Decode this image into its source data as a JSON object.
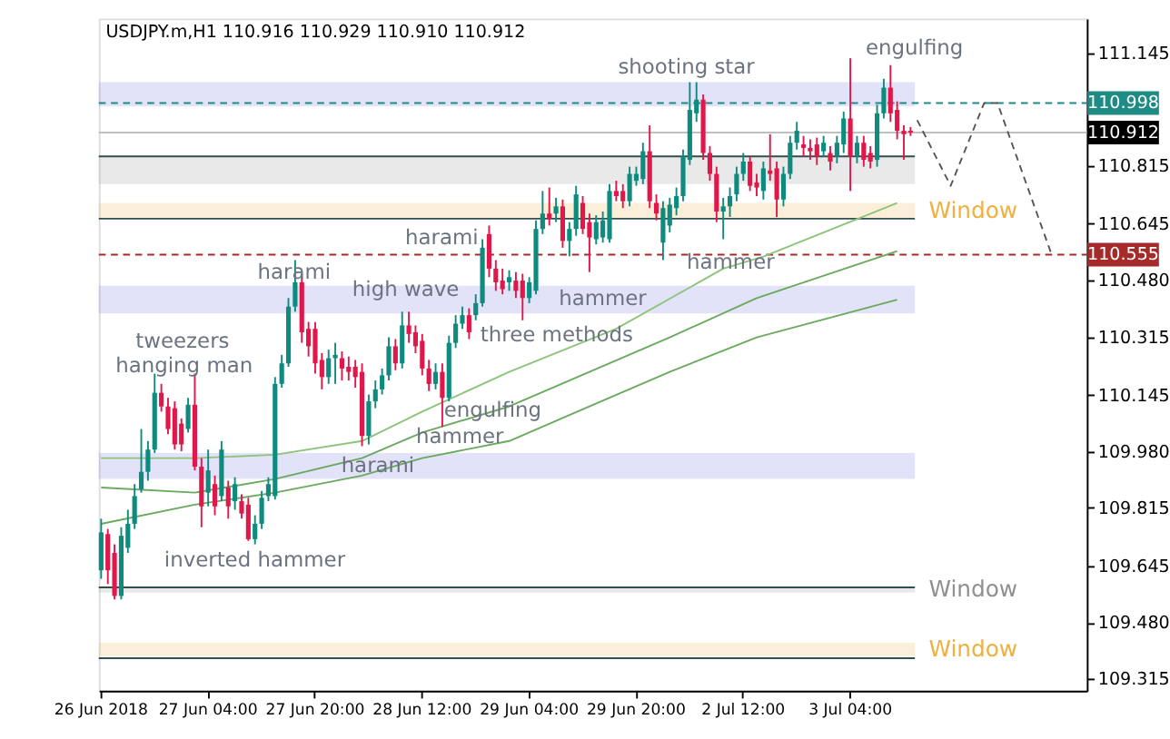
{
  "chart_data": {
    "type": "candlestick",
    "title": "USDJPY.m,H1  110.916 110.929 110.910 110.912",
    "categories": [
      "26 Jun 2018",
      null,
      null,
      null,
      null,
      null,
      null,
      null,
      null,
      null,
      null,
      null,
      null,
      null,
      null,
      null,
      "27 Jun 04:00",
      null,
      null,
      null,
      null,
      null,
      null,
      null,
      null,
      null,
      null,
      null,
      null,
      null,
      null,
      null,
      "27 Jun 20:00",
      null,
      null,
      null,
      null,
      null,
      null,
      null,
      null,
      null,
      null,
      null,
      null,
      null,
      null,
      null,
      "28 Jun 12:00",
      null,
      null,
      null,
      null,
      null,
      null,
      null,
      null,
      null,
      null,
      null,
      null,
      null,
      null,
      null,
      "29 Jun 04:00",
      null,
      null,
      null,
      null,
      null,
      null,
      null,
      null,
      null,
      null,
      null,
      null,
      null,
      null,
      null,
      "29 Jun 20:00",
      null,
      null,
      null,
      null,
      null,
      null,
      null,
      null,
      null,
      null,
      null,
      null,
      null,
      null,
      null,
      "2 Jul 12:00",
      null,
      null,
      null,
      null,
      null,
      null,
      null,
      null,
      null,
      null,
      null,
      null,
      null,
      null,
      null,
      "3 Jul 04:00",
      null,
      null,
      null,
      null,
      null,
      null,
      null,
      null,
      null,
      null,
      null,
      null,
      null,
      null,
      null,
      null,
      null,
      null,
      null,
      null,
      null,
      null,
      null,
      null,
      null,
      null,
      null,
      null,
      null,
      null,
      null,
      null,
      null,
      null,
      null
    ],
    "ohlc": [
      [
        109.632,
        109.783,
        109.607,
        109.743
      ],
      [
        109.738,
        109.753,
        109.592,
        109.632
      ],
      [
        109.683,
        109.708,
        109.547,
        109.557
      ],
      [
        109.557,
        109.758,
        109.547,
        109.733
      ],
      [
        109.698,
        109.809,
        109.683,
        109.768
      ],
      [
        109.768,
        109.884,
        109.753,
        109.849
      ],
      [
        109.869,
        110.045,
        109.859,
        109.92
      ],
      [
        109.92,
        110.01,
        109.894,
        109.985
      ],
      [
        109.985,
        110.207,
        109.975,
        110.151
      ],
      [
        110.151,
        110.177,
        110.096,
        110.111
      ],
      [
        110.111,
        110.136,
        110.03,
        110.045
      ],
      [
        110.106,
        110.126,
        109.985,
        110.0
      ],
      [
        110.061,
        110.076,
        109.98,
        110.0
      ],
      [
        110.045,
        110.136,
        110.035,
        110.116
      ],
      [
        110.116,
        110.207,
        109.924,
        109.935
      ],
      [
        109.935,
        109.96,
        109.758,
        109.819
      ],
      [
        109.859,
        109.985,
        109.819,
        109.924
      ],
      [
        109.884,
        109.909,
        109.793,
        109.819
      ],
      [
        109.849,
        110.01,
        109.834,
        109.985
      ],
      [
        109.874,
        109.894,
        109.783,
        109.819
      ],
      [
        109.834,
        109.904,
        109.809,
        109.884
      ],
      [
        109.834,
        109.854,
        109.783,
        109.798
      ],
      [
        109.824,
        109.844,
        109.718,
        109.723
      ],
      [
        109.723,
        109.793,
        109.708,
        109.768
      ],
      [
        109.768,
        109.864,
        109.753,
        109.844
      ],
      [
        109.849,
        109.904,
        109.834,
        109.884
      ],
      [
        109.849,
        110.197,
        109.839,
        110.177
      ],
      [
        110.177,
        110.262,
        110.166,
        110.237
      ],
      [
        110.237,
        110.428,
        110.227,
        110.403
      ],
      [
        110.403,
        110.539,
        110.388,
        110.474
      ],
      [
        110.474,
        110.499,
        110.297,
        110.328
      ],
      [
        110.338,
        110.358,
        110.257,
        110.287
      ],
      [
        110.338,
        110.358,
        110.207,
        110.237
      ],
      [
        110.247,
        110.267,
        110.161,
        110.197
      ],
      [
        110.197,
        110.277,
        110.177,
        110.252
      ],
      [
        110.252,
        110.297,
        110.177,
        110.262
      ],
      [
        110.252,
        110.272,
        110.187,
        110.222
      ],
      [
        110.227,
        110.257,
        110.187,
        110.212
      ],
      [
        110.227,
        110.247,
        110.166,
        110.197
      ],
      [
        110.212,
        110.237,
        109.995,
        110.025
      ],
      [
        110.025,
        110.146,
        110.0,
        110.126
      ],
      [
        110.126,
        110.187,
        110.106,
        110.161
      ],
      [
        110.161,
        110.222,
        110.146,
        110.202
      ],
      [
        110.202,
        110.313,
        110.187,
        110.287
      ],
      [
        110.287,
        110.308,
        110.217,
        110.237
      ],
      [
        110.237,
        110.388,
        110.222,
        110.348
      ],
      [
        110.348,
        110.388,
        110.297,
        110.323
      ],
      [
        110.328,
        110.348,
        110.267,
        110.287
      ],
      [
        110.303,
        110.323,
        110.202,
        110.222
      ],
      [
        110.222,
        110.247,
        110.156,
        110.177
      ],
      [
        110.177,
        110.237,
        110.161,
        110.212
      ],
      [
        110.212,
        110.237,
        110.051,
        110.136
      ],
      [
        110.136,
        110.318,
        110.126,
        110.297
      ],
      [
        110.297,
        110.378,
        110.282,
        110.353
      ],
      [
        110.353,
        110.403,
        110.338,
        110.378
      ],
      [
        110.378,
        110.398,
        110.308,
        110.328
      ],
      [
        110.378,
        110.439,
        110.363,
        110.413
      ],
      [
        110.413,
        110.6,
        110.403,
        110.575
      ],
      [
        110.615,
        110.64,
        110.489,
        110.514
      ],
      [
        110.514,
        110.539,
        110.449,
        110.474
      ],
      [
        110.479,
        110.514,
        110.439,
        110.454
      ],
      [
        110.474,
        110.509,
        110.449,
        110.489
      ],
      [
        110.479,
        110.504,
        110.428,
        110.449
      ],
      [
        110.479,
        110.499,
        110.363,
        110.428
      ],
      [
        110.428,
        110.489,
        110.413,
        110.474
      ],
      [
        110.449,
        110.655,
        110.439,
        110.63
      ],
      [
        110.63,
        110.741,
        110.615,
        110.675
      ],
      [
        110.675,
        110.751,
        110.64,
        110.66
      ],
      [
        110.675,
        110.721,
        110.65,
        110.696
      ],
      [
        110.696,
        110.716,
        110.575,
        110.595
      ],
      [
        110.595,
        110.65,
        110.55,
        110.63
      ],
      [
        110.63,
        110.756,
        110.61,
        110.731
      ],
      [
        110.706,
        110.726,
        110.615,
        110.63
      ],
      [
        110.65,
        110.675,
        110.504,
        110.605
      ],
      [
        110.6,
        110.67,
        110.585,
        110.65
      ],
      [
        110.605,
        110.681,
        110.59,
        110.655
      ],
      [
        110.6,
        110.761,
        110.59,
        110.741
      ],
      [
        110.741,
        110.771,
        110.711,
        110.726
      ],
      [
        110.741,
        110.761,
        110.691,
        110.711
      ],
      [
        110.711,
        110.812,
        110.696,
        110.791
      ],
      [
        110.771,
        110.812,
        110.756,
        110.791
      ],
      [
        110.776,
        110.882,
        110.761,
        110.857
      ],
      [
        110.857,
        110.933,
        110.691,
        110.711
      ],
      [
        110.706,
        110.731,
        110.655,
        110.675
      ],
      [
        110.59,
        110.711,
        110.539,
        110.691
      ],
      [
        110.64,
        110.721,
        110.62,
        110.701
      ],
      [
        110.691,
        110.751,
        110.67,
        110.726
      ],
      [
        110.726,
        110.862,
        110.711,
        110.842
      ],
      [
        110.832,
        111.059,
        110.817,
        110.978
      ],
      [
        110.968,
        111.059,
        110.943,
        111.008
      ],
      [
        111.008,
        111.023,
        110.832,
        110.852
      ],
      [
        110.852,
        110.872,
        110.771,
        110.791
      ],
      [
        110.791,
        110.812,
        110.65,
        110.681
      ],
      [
        110.681,
        110.721,
        110.6,
        110.696
      ],
      [
        110.696,
        110.751,
        110.665,
        110.726
      ],
      [
        110.731,
        110.812,
        110.711,
        110.791
      ],
      [
        110.791,
        110.852,
        110.771,
        110.827
      ],
      [
        110.827,
        110.842,
        110.741,
        110.756
      ],
      [
        110.766,
        110.791,
        110.726,
        110.751
      ],
      [
        110.741,
        110.827,
        110.716,
        110.807
      ],
      [
        110.801,
        110.907,
        110.771,
        110.791
      ],
      [
        110.807,
        110.827,
        110.665,
        110.716
      ],
      [
        110.716,
        110.812,
        110.696,
        110.791
      ],
      [
        110.791,
        110.902,
        110.776,
        110.882
      ],
      [
        110.882,
        110.943,
        110.862,
        110.917
      ],
      [
        110.877,
        110.902,
        110.842,
        110.867
      ],
      [
        110.867,
        110.892,
        110.832,
        110.857
      ],
      [
        110.877,
        110.897,
        110.817,
        110.842
      ],
      [
        110.857,
        110.902,
        110.842,
        110.882
      ],
      [
        110.852,
        110.872,
        110.801,
        110.827
      ],
      [
        110.842,
        110.902,
        110.822,
        110.882
      ],
      [
        110.877,
        110.973,
        110.852,
        110.953
      ],
      [
        110.953,
        111.129,
        110.741,
        110.842
      ],
      [
        110.842,
        110.902,
        110.822,
        110.882
      ],
      [
        110.882,
        110.902,
        110.812,
        110.832
      ],
      [
        110.852,
        110.872,
        110.807,
        110.827
      ],
      [
        110.832,
        110.993,
        110.812,
        110.968
      ],
      [
        110.968,
        111.069,
        110.953,
        111.043
      ],
      [
        111.043,
        111.109,
        110.943,
        110.968
      ],
      [
        110.978,
        111.003,
        110.892,
        110.917
      ],
      [
        110.917,
        110.933,
        110.832,
        110.907
      ],
      [
        110.917,
        110.928,
        110.902,
        110.912
      ],
      null,
      null,
      null,
      null,
      null,
      null,
      null,
      null,
      null,
      null,
      null,
      null,
      null,
      null,
      null,
      null,
      null,
      null,
      null,
      null,
      null,
      null,
      null,
      null,
      null,
      null
    ],
    "colors": [
      "#0e8a7f",
      "#e0174a",
      "#e0174a",
      "#0e8a7f",
      "#0e8a7f",
      "#0e8a7f",
      "#0e8a7f",
      "#0e8a7f",
      "#0e8a7f",
      "#e0174a",
      "#e0174a",
      "#e0174a",
      "#e0174a",
      "#0e8a7f",
      "#e0174a",
      "#e0174a",
      "#0e8a7f",
      "#e0174a",
      "#0e8a7f",
      "#e0174a",
      "#0e8a7f",
      "#e0174a",
      "#e0174a",
      "#0e8a7f",
      "#0e8a7f",
      "#0e8a7f",
      "#0e8a7f",
      "#0e8a7f",
      "#0e8a7f",
      "#0e8a7f",
      "#e0174a",
      "#e0174a",
      "#e0174a",
      "#e0174a",
      "#0e8a7f",
      "#0e8a7f",
      "#e0174a",
      "#e0174a",
      "#e0174a",
      "#e0174a",
      "#0e8a7f",
      "#0e8a7f",
      "#0e8a7f",
      "#0e8a7f",
      "#e0174a",
      "#0e8a7f",
      "#e0174a",
      "#e0174a",
      "#e0174a",
      "#e0174a",
      "#0e8a7f",
      "#e0174a",
      "#0e8a7f",
      "#0e8a7f",
      "#0e8a7f",
      "#e0174a",
      "#0e8a7f",
      "#0e8a7f",
      "#e0174a",
      "#e0174a",
      "#e0174a",
      "#0e8a7f",
      "#e0174a",
      "#e0174a",
      "#0e8a7f",
      "#0e8a7f",
      "#0e8a7f",
      "#e0174a",
      "#0e8a7f",
      "#e0174a",
      "#0e8a7f",
      "#0e8a7f",
      "#e0174a",
      "#e0174a",
      "#0e8a7f",
      "#0e8a7f",
      "#0e8a7f",
      "#e0174a",
      "#e0174a",
      "#0e8a7f",
      "#0e8a7f",
      "#0e8a7f",
      "#e0174a",
      "#e0174a",
      "#0e8a7f",
      "#0e8a7f",
      "#0e8a7f",
      "#0e8a7f",
      "#0e8a7f",
      "#0e8a7f",
      "#e0174a",
      "#e0174a",
      "#e0174a",
      "#0e8a7f",
      "#0e8a7f",
      "#0e8a7f",
      "#0e8a7f",
      "#e0174a",
      "#e0174a",
      "#0e8a7f",
      "#e0174a",
      "#e0174a",
      "#0e8a7f",
      "#0e8a7f",
      "#0e8a7f",
      "#e0174a",
      "#e0174a",
      "#e0174a",
      "#0e8a7f",
      "#e0174a",
      "#0e8a7f",
      "#0e8a7f",
      "#e0174a",
      "#0e8a7f",
      "#e0174a",
      "#e0174a",
      "#0e8a7f",
      "#0e8a7f",
      "#e0174a",
      "#e0174a",
      "#e0174a",
      "#e0174a",
      null,
      null,
      null,
      null,
      null,
      null,
      null,
      null,
      null,
      null,
      null,
      null,
      null,
      null,
      null,
      null,
      null,
      null,
      null,
      null,
      null,
      null,
      null,
      null,
      null,
      null
    ],
    "series": [
      {
        "type": "line",
        "color": "#8cc47a",
        "values": [
          109.96,
          null,
          null,
          null,
          null,
          null,
          null,
          null,
          null,
          null,
          null,
          null,
          null,
          null,
          109.96,
          null,
          null,
          null,
          null,
          null,
          null,
          null,
          null,
          null,
          null,
          null,
          109.97,
          null,
          null,
          null,
          null,
          null,
          null,
          null,
          null,
          null,
          null,
          null,
          null,
          110.01,
          null,
          null,
          null,
          null,
          null,
          null,
          null,
          null,
          110.096,
          null,
          null,
          null,
          null,
          null,
          null,
          null,
          null,
          null,
          null,
          null,
          null,
          110.212,
          null,
          null,
          null,
          null,
          null,
          null,
          null,
          null,
          null,
          null,
          null,
          null,
          null,
          null,
          null,
          110.338,
          null,
          null,
          null,
          null,
          null,
          null,
          null,
          null,
          null,
          null,
          null,
          null,
          null,
          null,
          null,
          110.514,
          null,
          null,
          null,
          null,
          null,
          110.549,
          null,
          null,
          null,
          null,
          null,
          null,
          null,
          null,
          null,
          null,
          null,
          null,
          null,
          null,
          null,
          null,
          null,
          null,
          null,
          110.706,
          null,
          null,
          null,
          null,
          null,
          null,
          null,
          null,
          null,
          null,
          null,
          null,
          null,
          null,
          null,
          null,
          null,
          null,
          null,
          null,
          null,
          null,
          null,
          null,
          null,
          null,
          null,
          null
        ]
      },
      {
        "type": "line",
        "color": "#6aaa5e",
        "values": [
          109.874,
          null,
          null,
          null,
          null,
          null,
          null,
          null,
          null,
          null,
          null,
          null,
          null,
          null,
          109.859,
          null,
          null,
          null,
          null,
          null,
          null,
          null,
          null,
          null,
          null,
          null,
          109.899,
          null,
          null,
          null,
          null,
          null,
          null,
          null,
          null,
          null,
          null,
          null,
          null,
          109.96,
          null,
          null,
          null,
          null,
          null,
          null,
          null,
          null,
          110.035,
          null,
          null,
          null,
          null,
          null,
          null,
          null,
          null,
          null,
          null,
          null,
          null,
          110.111,
          null,
          null,
          null,
          null,
          null,
          null,
          null,
          null,
          null,
          null,
          null,
          110.212,
          null,
          null,
          null,
          null,
          null,
          null,
          null,
          null,
          null,
          null,
          null,
          110.313,
          null,
          null,
          null,
          null,
          null,
          null,
          null,
          null,
          null,
          null,
          null,
          null,
          110.428,
          null,
          null,
          null,
          null,
          null,
          null,
          null,
          null,
          null,
          null,
          null,
          null,
          null,
          null,
          null,
          null,
          null,
          null,
          null,
          null,
          110.565,
          null,
          null,
          null,
          null,
          null,
          null,
          null,
          null,
          null,
          null,
          null,
          null,
          null,
          null,
          null,
          null,
          null,
          null,
          null,
          null,
          null,
          null,
          null,
          null,
          null,
          null,
          null,
          null
        ]
      },
      {
        "type": "line",
        "color": "#6aaa5e",
        "values": [
          109.768,
          null,
          null,
          null,
          null,
          null,
          null,
          null,
          null,
          null,
          null,
          null,
          null,
          null,
          109.824,
          null,
          null,
          null,
          null,
          null,
          null,
          null,
          null,
          null,
          null,
          null,
          109.859,
          null,
          null,
          null,
          null,
          null,
          null,
          null,
          null,
          null,
          null,
          null,
          null,
          109.909,
          null,
          null,
          null,
          null,
          null,
          null,
          null,
          null,
          109.96,
          null,
          null,
          null,
          null,
          null,
          null,
          null,
          null,
          null,
          null,
          null,
          null,
          110.01,
          null,
          null,
          null,
          null,
          null,
          null,
          null,
          null,
          null,
          null,
          null,
          110.111,
          null,
          null,
          null,
          null,
          null,
          null,
          null,
          null,
          null,
          null,
          null,
          110.212,
          null,
          null,
          null,
          null,
          null,
          null,
          null,
          null,
          null,
          null,
          null,
          null,
          110.313,
          null,
          null,
          null,
          null,
          null,
          null,
          null,
          null,
          null,
          null,
          null,
          null,
          null,
          null,
          null,
          null,
          null,
          null,
          null,
          null,
          110.423,
          null,
          null,
          null,
          null,
          null,
          null,
          null,
          null,
          null,
          null,
          null,
          null,
          null,
          null,
          null,
          null,
          null,
          null,
          null,
          null,
          null,
          null,
          null,
          null,
          null,
          null,
          null,
          null
        ]
      },
      {
        "type": "line",
        "color": "#555555",
        "line_style": "dashed",
        "values": [
          null,
          null,
          null,
          null,
          null,
          null,
          null,
          null,
          null,
          null,
          null,
          null,
          null,
          null,
          null,
          null,
          null,
          null,
          null,
          null,
          null,
          null,
          null,
          null,
          null,
          null,
          null,
          null,
          null,
          null,
          null,
          null,
          null,
          null,
          null,
          null,
          null,
          null,
          null,
          null,
          null,
          null,
          null,
          null,
          null,
          null,
          null,
          null,
          null,
          null,
          null,
          null,
          null,
          null,
          null,
          null,
          null,
          null,
          null,
          null,
          null,
          null,
          null,
          null,
          null,
          null,
          null,
          null,
          null,
          null,
          null,
          null,
          null,
          null,
          null,
          null,
          null,
          null,
          null,
          null,
          null,
          null,
          null,
          null,
          null,
          null,
          null,
          null,
          null,
          null,
          null,
          null,
          null,
          null,
          null,
          null,
          null,
          null,
          null,
          null,
          null,
          null,
          null,
          null,
          null,
          null,
          null,
          null,
          null,
          null,
          null,
          null,
          null,
          null,
          null,
          null,
          null,
          null,
          null,
          null,
          null,
          null,
          110.948,
          null,
          null,
          null,
          null,
          110.756,
          null,
          null,
          null,
          null,
          110.998,
          null,
          110.998,
          null,
          null,
          null,
          null,
          null,
          null,
          null,
          110.56,
          null,
          null,
          null,
          null,
          null
        ]
      }
    ],
    "ylim": [
      109.28,
      111.245
    ],
    "yticks": [
      {
        "value": 111.145,
        "label": "111.145"
      },
      {
        "value": 110.815,
        "label": "110.815"
      },
      {
        "value": 110.645,
        "label": "110.645"
      },
      {
        "value": 110.48,
        "label": "110.480"
      },
      {
        "value": 110.315,
        "label": "110.315"
      },
      {
        "value": 110.145,
        "label": "110.145"
      },
      {
        "value": 109.98,
        "label": "109.980"
      },
      {
        "value": 109.815,
        "label": "109.815"
      },
      {
        "value": 109.645,
        "label": "109.645"
      },
      {
        "value": 109.48,
        "label": "109.480"
      },
      {
        "value": 109.315,
        "label": "109.315"
      }
    ],
    "bands": [
      {
        "axis": "y",
        "from": 110.988,
        "to": 111.059,
        "color": "#7070e0"
      },
      {
        "axis": "y",
        "from": 110.761,
        "to": 110.842,
        "color": "#909090"
      },
      {
        "axis": "y",
        "from": 110.66,
        "to": 110.706,
        "color": "#f0b040",
        "label": "Window"
      },
      {
        "axis": "y",
        "from": 110.383,
        "to": 110.464,
        "color": "#7070e0"
      },
      {
        "axis": "y",
        "from": 109.899,
        "to": 109.975,
        "color": "#7070e0"
      },
      {
        "axis": "y",
        "from": 109.567,
        "to": 109.582,
        "color": "#909090",
        "label": "Window"
      },
      {
        "axis": "y",
        "from": 109.381,
        "to": 109.421,
        "color": "#f0b040",
        "label": "Window"
      }
    ],
    "ref_lines": [
      {
        "axis": "y",
        "value": 110.998,
        "label": "110.998",
        "color": "#1e8c84",
        "line_style": "dashed"
      },
      {
        "axis": "y",
        "value": 110.912,
        "label": "110.912",
        "color": "#c0c0c0",
        "line_style": "solid"
      },
      {
        "axis": "y",
        "value": 110.555,
        "label": "110.555",
        "color": "#a52a2a",
        "line_style": "dashed"
      },
      {
        "axis": "y",
        "value": 110.842,
        "color": "#2f4f4f",
        "line_style": "solid"
      },
      {
        "axis": "y",
        "value": 110.66,
        "color": "#2f4f4f",
        "line_style": "solid"
      },
      {
        "axis": "y",
        "value": 109.582,
        "color": "#2f4f4f",
        "line_style": "solid"
      },
      {
        "axis": "y",
        "value": 109.375,
        "color": "#2f4f4f",
        "line_style": "solid"
      }
    ],
    "annotations": [
      {
        "text": "shooting star",
        "y": 111.059
      },
      "engulfing",
      {
        "text": "harami",
        "y": 110.64
      },
      {
        "text": "high wave",
        "y": 110.388
      },
      {
        "text": "harami",
        "y": 110.539
      },
      "tweezers",
      "hanging man",
      {
        "text": "three methods",
        "y": 110.363
      },
      "hammer",
      {
        "text": "hammer",
        "y": 110.6
      },
      "engulfing",
      {
        "text": "hammer",
        "y": 110.051
      },
      {
        "text": "harami",
        "y": 109.995
      },
      {
        "text": "inverted hammer",
        "y": 109.718
      }
    ]
  }
}
